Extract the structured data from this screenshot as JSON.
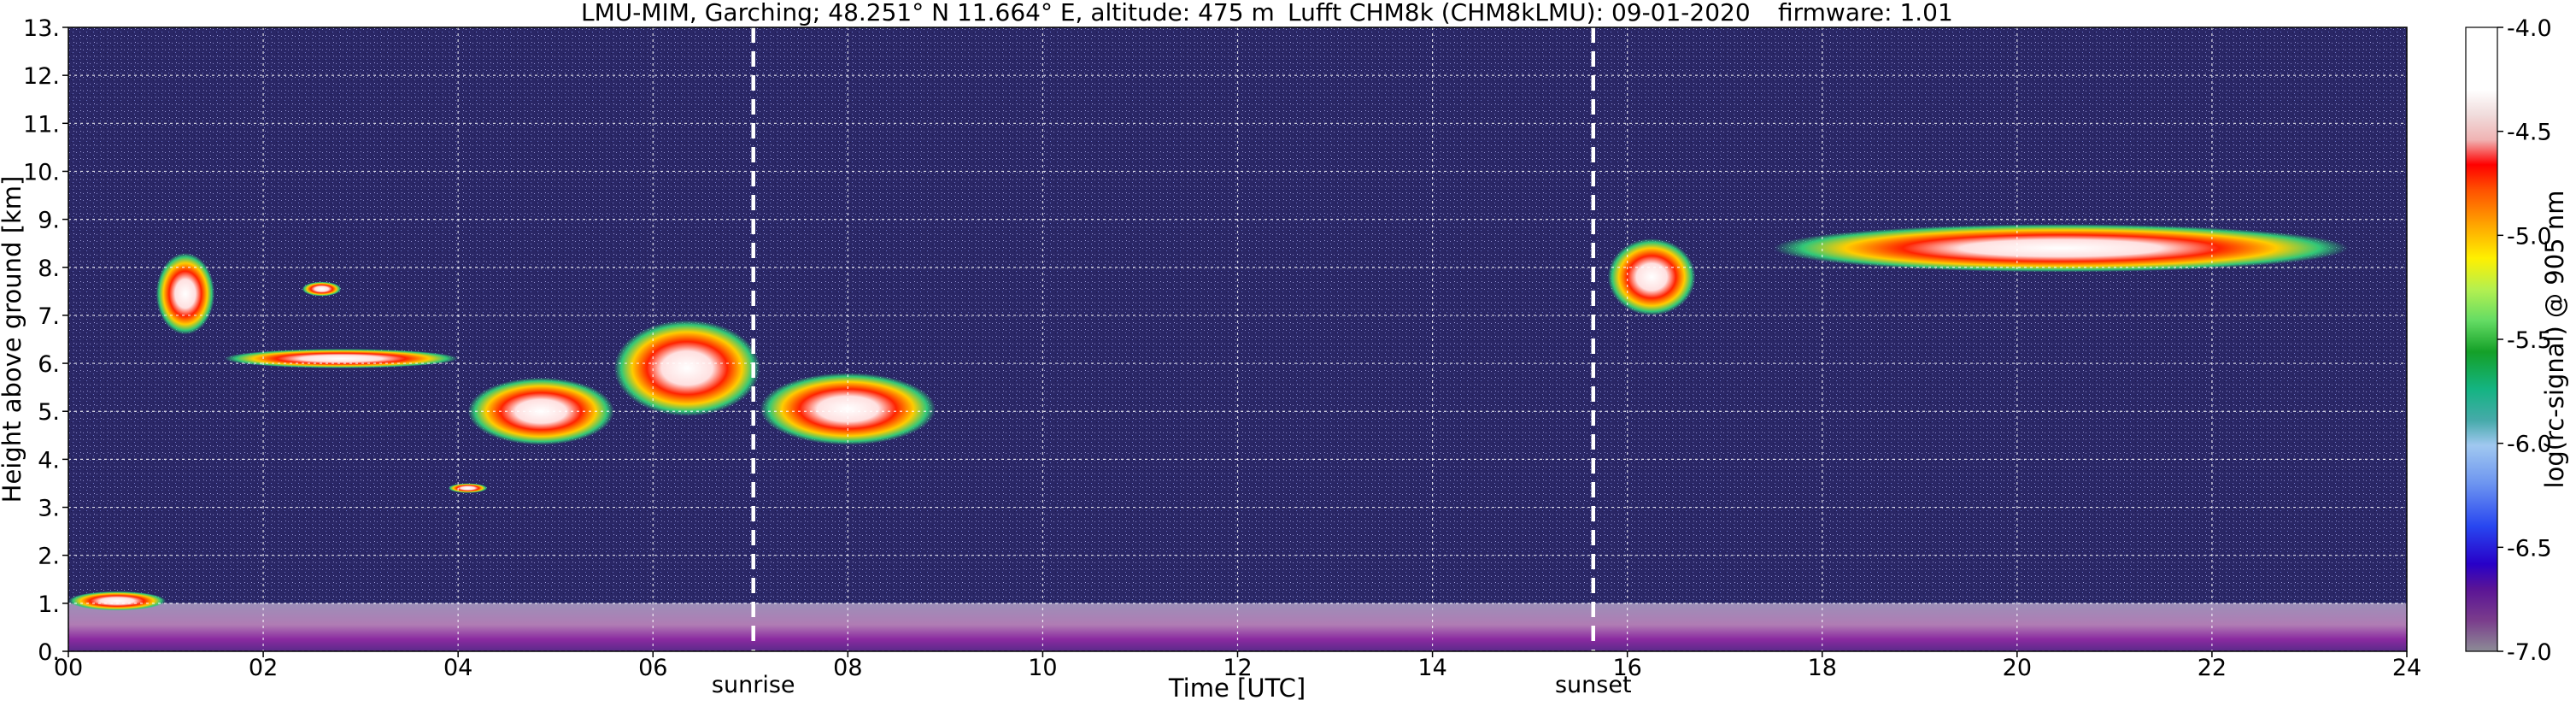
{
  "title": {
    "location": "LMU-MIM, Garching; 48.251° N 11.664° E, altitude: 475 m",
    "instrument": "Lufft CHM8k (CHM8kLMU): 09-01-2020",
    "firmware": "firmware: 1.01"
  },
  "chart_data": {
    "type": "heatmap",
    "xlabel": "Time [UTC]",
    "ylabel": "Height above ground [km]",
    "xlim": [
      0,
      24
    ],
    "ylim": [
      0,
      13
    ],
    "x_ticks": [
      "00",
      "02",
      "04",
      "06",
      "08",
      "10",
      "12",
      "14",
      "16",
      "18",
      "20",
      "22",
      "24"
    ],
    "y_ticks": [
      "0.",
      "1.",
      "2.",
      "3.",
      "4.",
      "5.",
      "6.",
      "7.",
      "8.",
      "9.",
      "10.",
      "11.",
      "12.",
      "13."
    ],
    "grid": true,
    "events": [
      {
        "label": "sunrise",
        "time": 7.03
      },
      {
        "label": "sunset",
        "time": 15.65
      }
    ],
    "colorbar": {
      "label": "log(rc-signal) @ 905 nm",
      "range": [
        -7.0,
        -4.0
      ],
      "ticks": [
        "-4.0",
        "-4.5",
        "-5.0",
        "-5.5",
        "-6.0",
        "-6.5",
        "-7.0"
      ],
      "tick_values": [
        -4.0,
        -4.5,
        -5.0,
        -5.5,
        -6.0,
        -6.5,
        -7.0
      ]
    },
    "cloud_layers": [
      {
        "t0": 0.9,
        "t1": 1.5,
        "h0": 6.6,
        "h1": 8.3
      },
      {
        "t0": 1.6,
        "t1": 4.0,
        "h0": 5.9,
        "h1": 6.3
      },
      {
        "t0": 2.4,
        "t1": 2.8,
        "h0": 7.4,
        "h1": 7.7
      },
      {
        "t0": 4.1,
        "t1": 5.6,
        "h0": 4.3,
        "h1": 5.7
      },
      {
        "t0": 5.6,
        "t1": 7.1,
        "h0": 4.9,
        "h1": 6.9
      },
      {
        "t0": 7.1,
        "t1": 8.9,
        "h0": 4.3,
        "h1": 5.8
      },
      {
        "t0": 15.8,
        "t1": 16.7,
        "h0": 7.0,
        "h1": 8.6
      },
      {
        "t0": 17.5,
        "t1": 23.4,
        "h0": 7.9,
        "h1": 8.9
      },
      {
        "t0": 0.0,
        "t1": 1.0,
        "h0": 0.85,
        "h1": 1.25
      },
      {
        "t0": 3.9,
        "t1": 4.3,
        "h0": 3.3,
        "h1": 3.5
      }
    ],
    "boundary_layer": {
      "h_top": 1.0
    }
  }
}
